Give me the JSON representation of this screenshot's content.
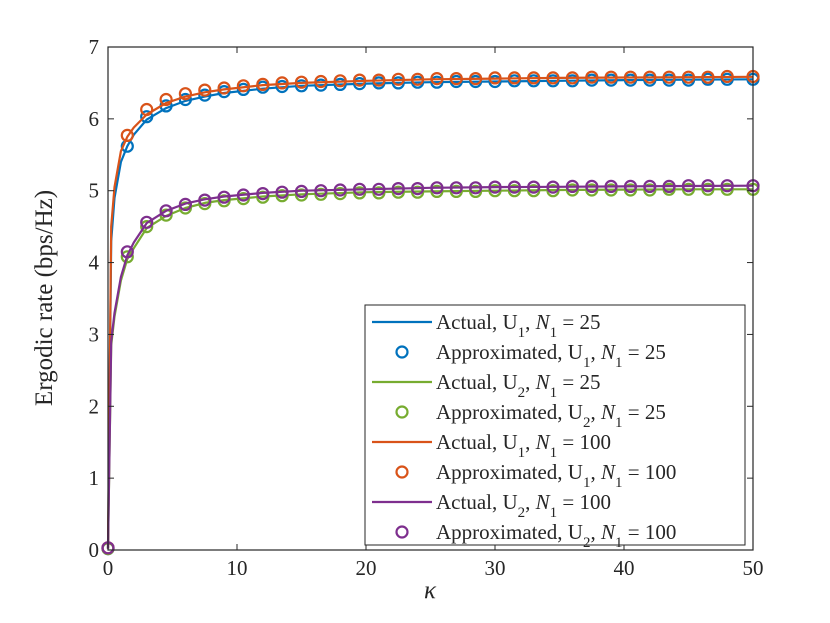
{
  "chart_data": {
    "type": "line",
    "title": "",
    "xlabel": "κ",
    "ylabel": "Ergodic rate (bps/Hz)",
    "xlim": [
      0,
      50
    ],
    "ylim": [
      0,
      7
    ],
    "xticks": [
      0,
      10,
      20,
      30,
      40,
      50
    ],
    "yticks": [
      0,
      1,
      2,
      3,
      4,
      5,
      6,
      7
    ],
    "grid": false,
    "legend_position": "bottom-right",
    "marker_x": [
      0,
      1.5,
      3,
      4.5,
      6,
      7.5,
      9,
      10.5,
      12,
      13.5,
      15,
      16.5,
      18,
      19.5,
      21,
      22.5,
      24,
      25.5,
      27,
      28.5,
      30,
      31.5,
      33,
      34.5,
      36,
      37.5,
      39,
      40.5,
      42,
      43.5,
      45,
      46.5,
      48,
      50
    ],
    "series": [
      {
        "name": "Actual, U1, N1 = 25",
        "legend_parts": [
          "Actual, U",
          "1",
          ", ",
          "N",
          "1",
          " = 25"
        ],
        "style": "line",
        "color": "#0072BD",
        "x": [
          0,
          0.25,
          0.5,
          1,
          1.5,
          2,
          3,
          4.5,
          6,
          7.5,
          9,
          12,
          15,
          20,
          25,
          30,
          35,
          40,
          45,
          50
        ],
        "values": [
          0.02,
          4.3,
          4.9,
          5.4,
          5.62,
          5.78,
          5.99,
          6.15,
          6.25,
          6.31,
          6.36,
          6.42,
          6.46,
          6.49,
          6.51,
          6.52,
          6.53,
          6.54,
          6.545,
          6.55
        ]
      },
      {
        "name": "Approximated, U1, N1 = 25",
        "legend_parts": [
          "Approximated, U",
          "1",
          ", ",
          "N",
          "1",
          " = 25"
        ],
        "style": "markers",
        "color": "#0072BD",
        "values": [
          0.02,
          5.62,
          6.03,
          6.18,
          6.27,
          6.33,
          6.38,
          6.41,
          6.44,
          6.45,
          6.46,
          6.47,
          6.48,
          6.49,
          6.5,
          6.5,
          6.51,
          6.51,
          6.52,
          6.52,
          6.52,
          6.53,
          6.53,
          6.53,
          6.53,
          6.54,
          6.54,
          6.54,
          6.54,
          6.54,
          6.54,
          6.55,
          6.55,
          6.55
        ]
      },
      {
        "name": "Actual, U2, N1 = 25",
        "legend_parts": [
          "Actual, U",
          "2",
          ", ",
          "N",
          "1",
          " = 25"
        ],
        "style": "line",
        "color": "#77AC30",
        "x": [
          0,
          0.25,
          0.5,
          1,
          1.5,
          2,
          3,
          4.5,
          6,
          7.5,
          9,
          12,
          15,
          20,
          25,
          30,
          35,
          40,
          45,
          50
        ],
        "values": [
          0.02,
          2.85,
          3.25,
          3.75,
          4.05,
          4.2,
          4.48,
          4.65,
          4.76,
          4.83,
          4.87,
          4.92,
          4.95,
          4.98,
          4.99,
          5.0,
          5.01,
          5.015,
          5.02,
          5.02
        ]
      },
      {
        "name": "Approximated, U2, N1 = 25",
        "legend_parts": [
          "Approximated, U",
          "2",
          ", ",
          "N",
          "1",
          " = 25"
        ],
        "style": "markers",
        "color": "#77AC30",
        "values": [
          0.02,
          4.08,
          4.5,
          4.66,
          4.76,
          4.82,
          4.86,
          4.89,
          4.91,
          4.93,
          4.94,
          4.95,
          4.96,
          4.97,
          4.97,
          4.98,
          4.98,
          4.99,
          4.99,
          4.99,
          5.0,
          5.0,
          5.0,
          5.0,
          5.01,
          5.01,
          5.01,
          5.01,
          5.01,
          5.02,
          5.02,
          5.02,
          5.02,
          5.02
        ]
      },
      {
        "name": "Actual, U1, N1 = 100",
        "legend_parts": [
          "Actual, U",
          "1",
          ", ",
          "N",
          "1",
          " = 100"
        ],
        "style": "line",
        "color": "#D95319",
        "x": [
          0,
          0.25,
          0.5,
          1,
          1.5,
          2,
          3,
          4.5,
          6,
          7.5,
          9,
          12,
          15,
          20,
          25,
          30,
          35,
          40,
          45,
          50
        ],
        "values": [
          0.02,
          4.5,
          5.05,
          5.55,
          5.75,
          5.88,
          6.06,
          6.22,
          6.31,
          6.37,
          6.41,
          6.47,
          6.5,
          6.53,
          6.55,
          6.56,
          6.57,
          6.575,
          6.58,
          6.585
        ]
      },
      {
        "name": "Approximated, U1, N1 = 100",
        "legend_parts": [
          "Approximated, U",
          "1",
          ", ",
          "N",
          "1",
          " = 100"
        ],
        "style": "markers",
        "color": "#D95319",
        "values": [
          0.03,
          5.77,
          6.13,
          6.27,
          6.35,
          6.4,
          6.43,
          6.46,
          6.48,
          6.5,
          6.51,
          6.52,
          6.53,
          6.54,
          6.54,
          6.55,
          6.55,
          6.56,
          6.56,
          6.56,
          6.57,
          6.57,
          6.57,
          6.57,
          6.57,
          6.58,
          6.58,
          6.58,
          6.58,
          6.58,
          6.58,
          6.58,
          6.59,
          6.59
        ]
      },
      {
        "name": "Actual, U2, N1 = 100",
        "legend_parts": [
          "Actual, U",
          "2",
          ", ",
          "N",
          "1",
          " = 100"
        ],
        "style": "line",
        "color": "#7E2F8E",
        "x": [
          0,
          0.25,
          0.5,
          1,
          1.5,
          2,
          3,
          4.5,
          6,
          7.5,
          9,
          12,
          15,
          20,
          25,
          30,
          35,
          40,
          45,
          50
        ],
        "values": [
          0.02,
          2.9,
          3.3,
          3.8,
          4.1,
          4.28,
          4.55,
          4.72,
          4.82,
          4.88,
          4.92,
          4.97,
          5.0,
          5.02,
          5.04,
          5.05,
          5.055,
          5.06,
          5.065,
          5.07
        ]
      },
      {
        "name": "Approximated, U2, N1 = 100",
        "legend_parts": [
          "Approximated, U",
          "2",
          ", ",
          "N",
          "1",
          " = 100"
        ],
        "style": "markers",
        "color": "#7E2F8E",
        "values": [
          0.03,
          4.15,
          4.56,
          4.72,
          4.81,
          4.87,
          4.91,
          4.94,
          4.96,
          4.98,
          4.99,
          5.0,
          5.01,
          5.02,
          5.02,
          5.03,
          5.03,
          5.04,
          5.04,
          5.04,
          5.05,
          5.05,
          5.05,
          5.05,
          5.06,
          5.06,
          5.06,
          5.06,
          5.06,
          5.06,
          5.07,
          5.07,
          5.07,
          5.07
        ]
      }
    ]
  }
}
